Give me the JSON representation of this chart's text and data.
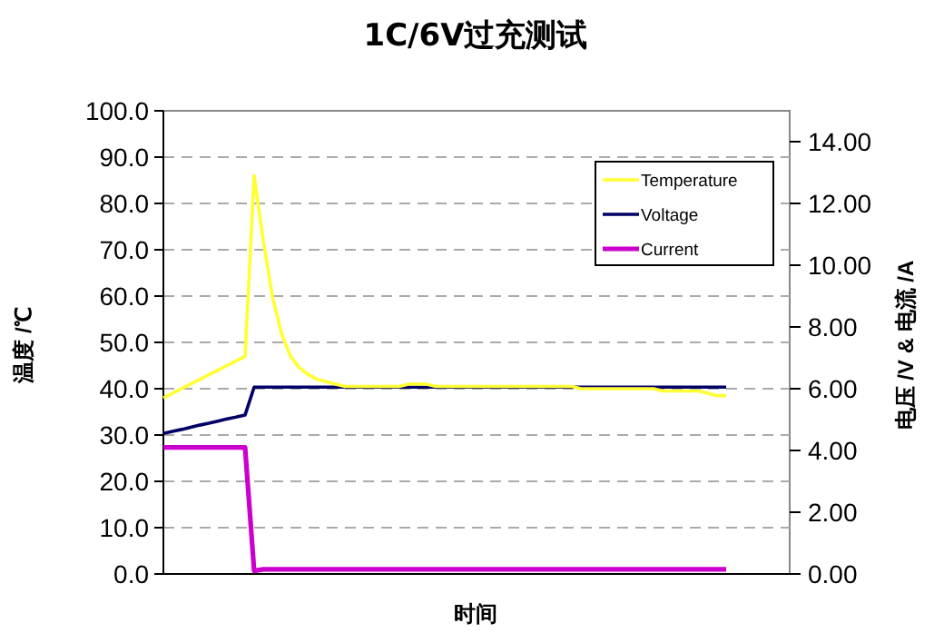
{
  "chart_data": {
    "type": "line",
    "title": "1C/6V过充测试",
    "xlabel": "时间",
    "ylabel": "温度 /℃",
    "y2label": "电压 /V & 电流 /A",
    "categories": [
      null,
      null,
      null,
      null,
      null,
      null,
      null,
      null,
      null,
      null,
      null,
      null,
      null,
      null,
      null,
      null,
      null,
      null,
      null,
      null,
      null,
      null,
      null,
      null,
      null,
      null,
      null,
      null,
      null,
      null,
      null,
      null,
      null,
      null,
      null,
      null,
      null,
      null,
      null,
      null,
      null,
      null,
      null,
      null,
      null,
      null,
      null,
      null,
      null,
      null,
      null,
      null,
      null,
      null,
      null,
      null,
      null,
      null,
      null,
      null,
      null,
      null,
      null,
      null,
      null,
      null,
      null,
      null,
      null,
      null
    ],
    "series": [
      {
        "name": "Temperature",
        "color": "#ffff33",
        "values": [
          38,
          39,
          40,
          41,
          42,
          43,
          44,
          45,
          46,
          47,
          86,
          72,
          60,
          52,
          47,
          44.5,
          43,
          42,
          41.5,
          41,
          40.5,
          40.5,
          40.5,
          40.5,
          40.5,
          40.5,
          40.5,
          41,
          41,
          41,
          40.5,
          40.5,
          40.5,
          40.5,
          40.5,
          40.5,
          40.5,
          40.5,
          40.5,
          40.5,
          40.5,
          40.5,
          40.5,
          40.5,
          40.5,
          40.5,
          40,
          40,
          40,
          40,
          40,
          40,
          40,
          40,
          40,
          39.5,
          39.5,
          39.5,
          39.5,
          39.5,
          39,
          38.5,
          38.5,
          null,
          null,
          null,
          null,
          null,
          null,
          null
        ]
      },
      {
        "name": "Voltage",
        "color": "#000066",
        "axis": "y2",
        "values": [
          4.55,
          4.62,
          4.68,
          4.75,
          4.82,
          4.88,
          4.95,
          5.02,
          5.08,
          5.15,
          6.05,
          6.05,
          6.05,
          6.05,
          6.05,
          6.05,
          6.05,
          6.05,
          6.05,
          6.05,
          6.05,
          6.05,
          6.05,
          6.05,
          6.05,
          6.05,
          6.05,
          6.05,
          6.05,
          6.05,
          6.05,
          6.05,
          6.05,
          6.05,
          6.05,
          6.05,
          6.05,
          6.05,
          6.05,
          6.05,
          6.05,
          6.05,
          6.05,
          6.05,
          6.05,
          6.05,
          6.05,
          6.05,
          6.05,
          6.05,
          6.05,
          6.05,
          6.05,
          6.05,
          6.05,
          6.05,
          6.05,
          6.05,
          6.05,
          6.05,
          6.05,
          6.05,
          6.05,
          null,
          null,
          null,
          null,
          null,
          null,
          null
        ]
      },
      {
        "name": "Current",
        "color": "#cc00cc",
        "axis": "y2",
        "values": [
          4.1,
          4.1,
          4.1,
          4.1,
          4.1,
          4.1,
          4.1,
          4.1,
          4.1,
          4.1,
          0.1,
          0.15,
          0.15,
          0.15,
          0.15,
          0.15,
          0.15,
          0.15,
          0.15,
          0.15,
          0.15,
          0.15,
          0.15,
          0.15,
          0.15,
          0.15,
          0.15,
          0.15,
          0.15,
          0.15,
          0.15,
          0.15,
          0.15,
          0.15,
          0.15,
          0.15,
          0.15,
          0.15,
          0.15,
          0.15,
          0.15,
          0.15,
          0.15,
          0.15,
          0.15,
          0.15,
          0.15,
          0.15,
          0.15,
          0.15,
          0.15,
          0.15,
          0.15,
          0.15,
          0.15,
          0.15,
          0.15,
          0.15,
          0.15,
          0.15,
          0.15,
          0.15,
          0.15,
          null,
          null,
          null,
          null,
          null,
          null,
          null
        ]
      }
    ],
    "ylim": [
      0,
      100
    ],
    "yticks": [
      {
        "value": 0,
        "label": "0.0"
      },
      {
        "value": 10,
        "label": "10.0"
      },
      {
        "value": 20,
        "label": "20.0"
      },
      {
        "value": 30,
        "label": "30.0"
      },
      {
        "value": 40,
        "label": "40.0"
      },
      {
        "value": 50,
        "label": "50.0"
      },
      {
        "value": 60,
        "label": "60.0"
      },
      {
        "value": 70,
        "label": "70.0"
      },
      {
        "value": 80,
        "label": "80.0"
      },
      {
        "value": 90,
        "label": "90.0"
      },
      {
        "value": 100,
        "label": "100.0"
      }
    ],
    "y2lim": [
      0,
      15
    ],
    "y2ticks": [
      {
        "value": 0,
        "label": "0.00"
      },
      {
        "value": 2,
        "label": "2.00"
      },
      {
        "value": 4,
        "label": "4.00"
      },
      {
        "value": 6,
        "label": "6.00"
      },
      {
        "value": 8,
        "label": "8.00"
      },
      {
        "value": 10,
        "label": "10.00"
      },
      {
        "value": 12,
        "label": "12.00"
      },
      {
        "value": 14,
        "label": "14.00"
      }
    ],
    "grid": "y",
    "legend": "top right",
    "marker": "none",
    "line_style": "solid"
  }
}
